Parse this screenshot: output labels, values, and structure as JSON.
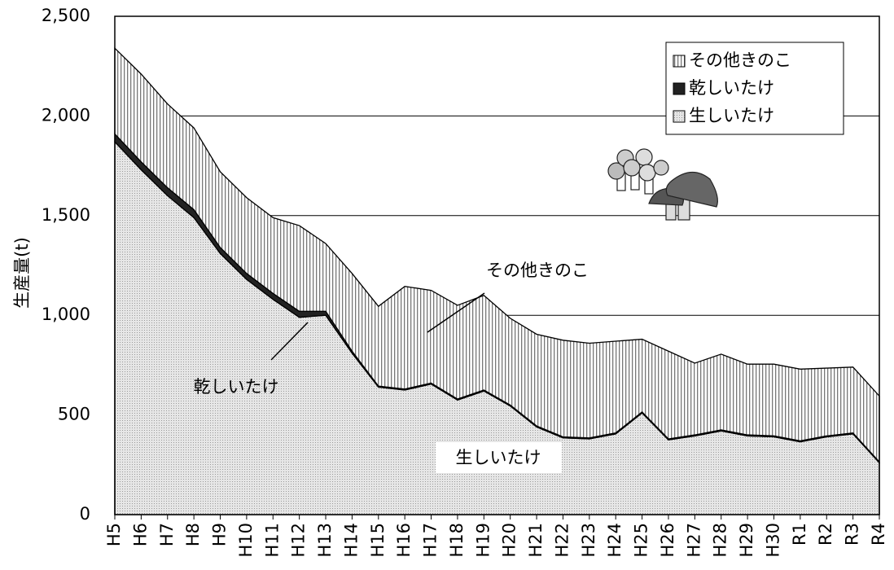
{
  "chart_data": {
    "type": "stacked_area",
    "y_label": "生産量(t)",
    "categories": [
      "H5",
      "H6",
      "H7",
      "H8",
      "H9",
      "H10",
      "H11",
      "H12",
      "H13",
      "H14",
      "H15",
      "H16",
      "H17",
      "H18",
      "H19",
      "H20",
      "H21",
      "H22",
      "H23",
      "H24",
      "H25",
      "H26",
      "H27",
      "H28",
      "H29",
      "H30",
      "R1",
      "R2",
      "R3",
      "R4"
    ],
    "series": [
      {
        "name": "生しいたけ",
        "color": "#d4d4d4",
        "values": [
          1870,
          1730,
          1600,
          1490,
          1310,
          1180,
          1080,
          990,
          1000,
          810,
          640,
          625,
          655,
          575,
          620,
          545,
          440,
          385,
          380,
          405,
          510,
          375,
          395,
          420,
          395,
          390,
          365,
          390,
          405,
          260
        ]
      },
      {
        "name": "乾しいたけ",
        "color": "#222222",
        "values": [
          40,
          40,
          40,
          40,
          30,
          30,
          30,
          30,
          20,
          10,
          5,
          5,
          5,
          5,
          5,
          5,
          5,
          5,
          5,
          5,
          5,
          5,
          5,
          5,
          5,
          5,
          5,
          5,
          5,
          5
        ]
      },
      {
        "name": "その他きのこ",
        "color": "#888888",
        "values": [
          430,
          440,
          420,
          410,
          380,
          380,
          380,
          430,
          340,
          390,
          400,
          515,
          465,
          470,
          475,
          435,
          460,
          485,
          475,
          460,
          365,
          440,
          360,
          380,
          355,
          360,
          360,
          340,
          330,
          330
        ]
      }
    ],
    "annotations": [
      "その他きのこ",
      "乾しいたけ",
      "生しいたけ"
    ],
    "ylim": [
      0,
      2500
    ],
    "yticks": [
      0,
      500,
      {
        "value": 1000,
        "label": "1,000"
      },
      {
        "value": 1500,
        "label": "1,500"
      },
      {
        "value": 2000,
        "label": "2,000"
      },
      {
        "value": 2500,
        "label": "2,500"
      }
    ],
    "grid": true,
    "legend": "upper right"
  }
}
